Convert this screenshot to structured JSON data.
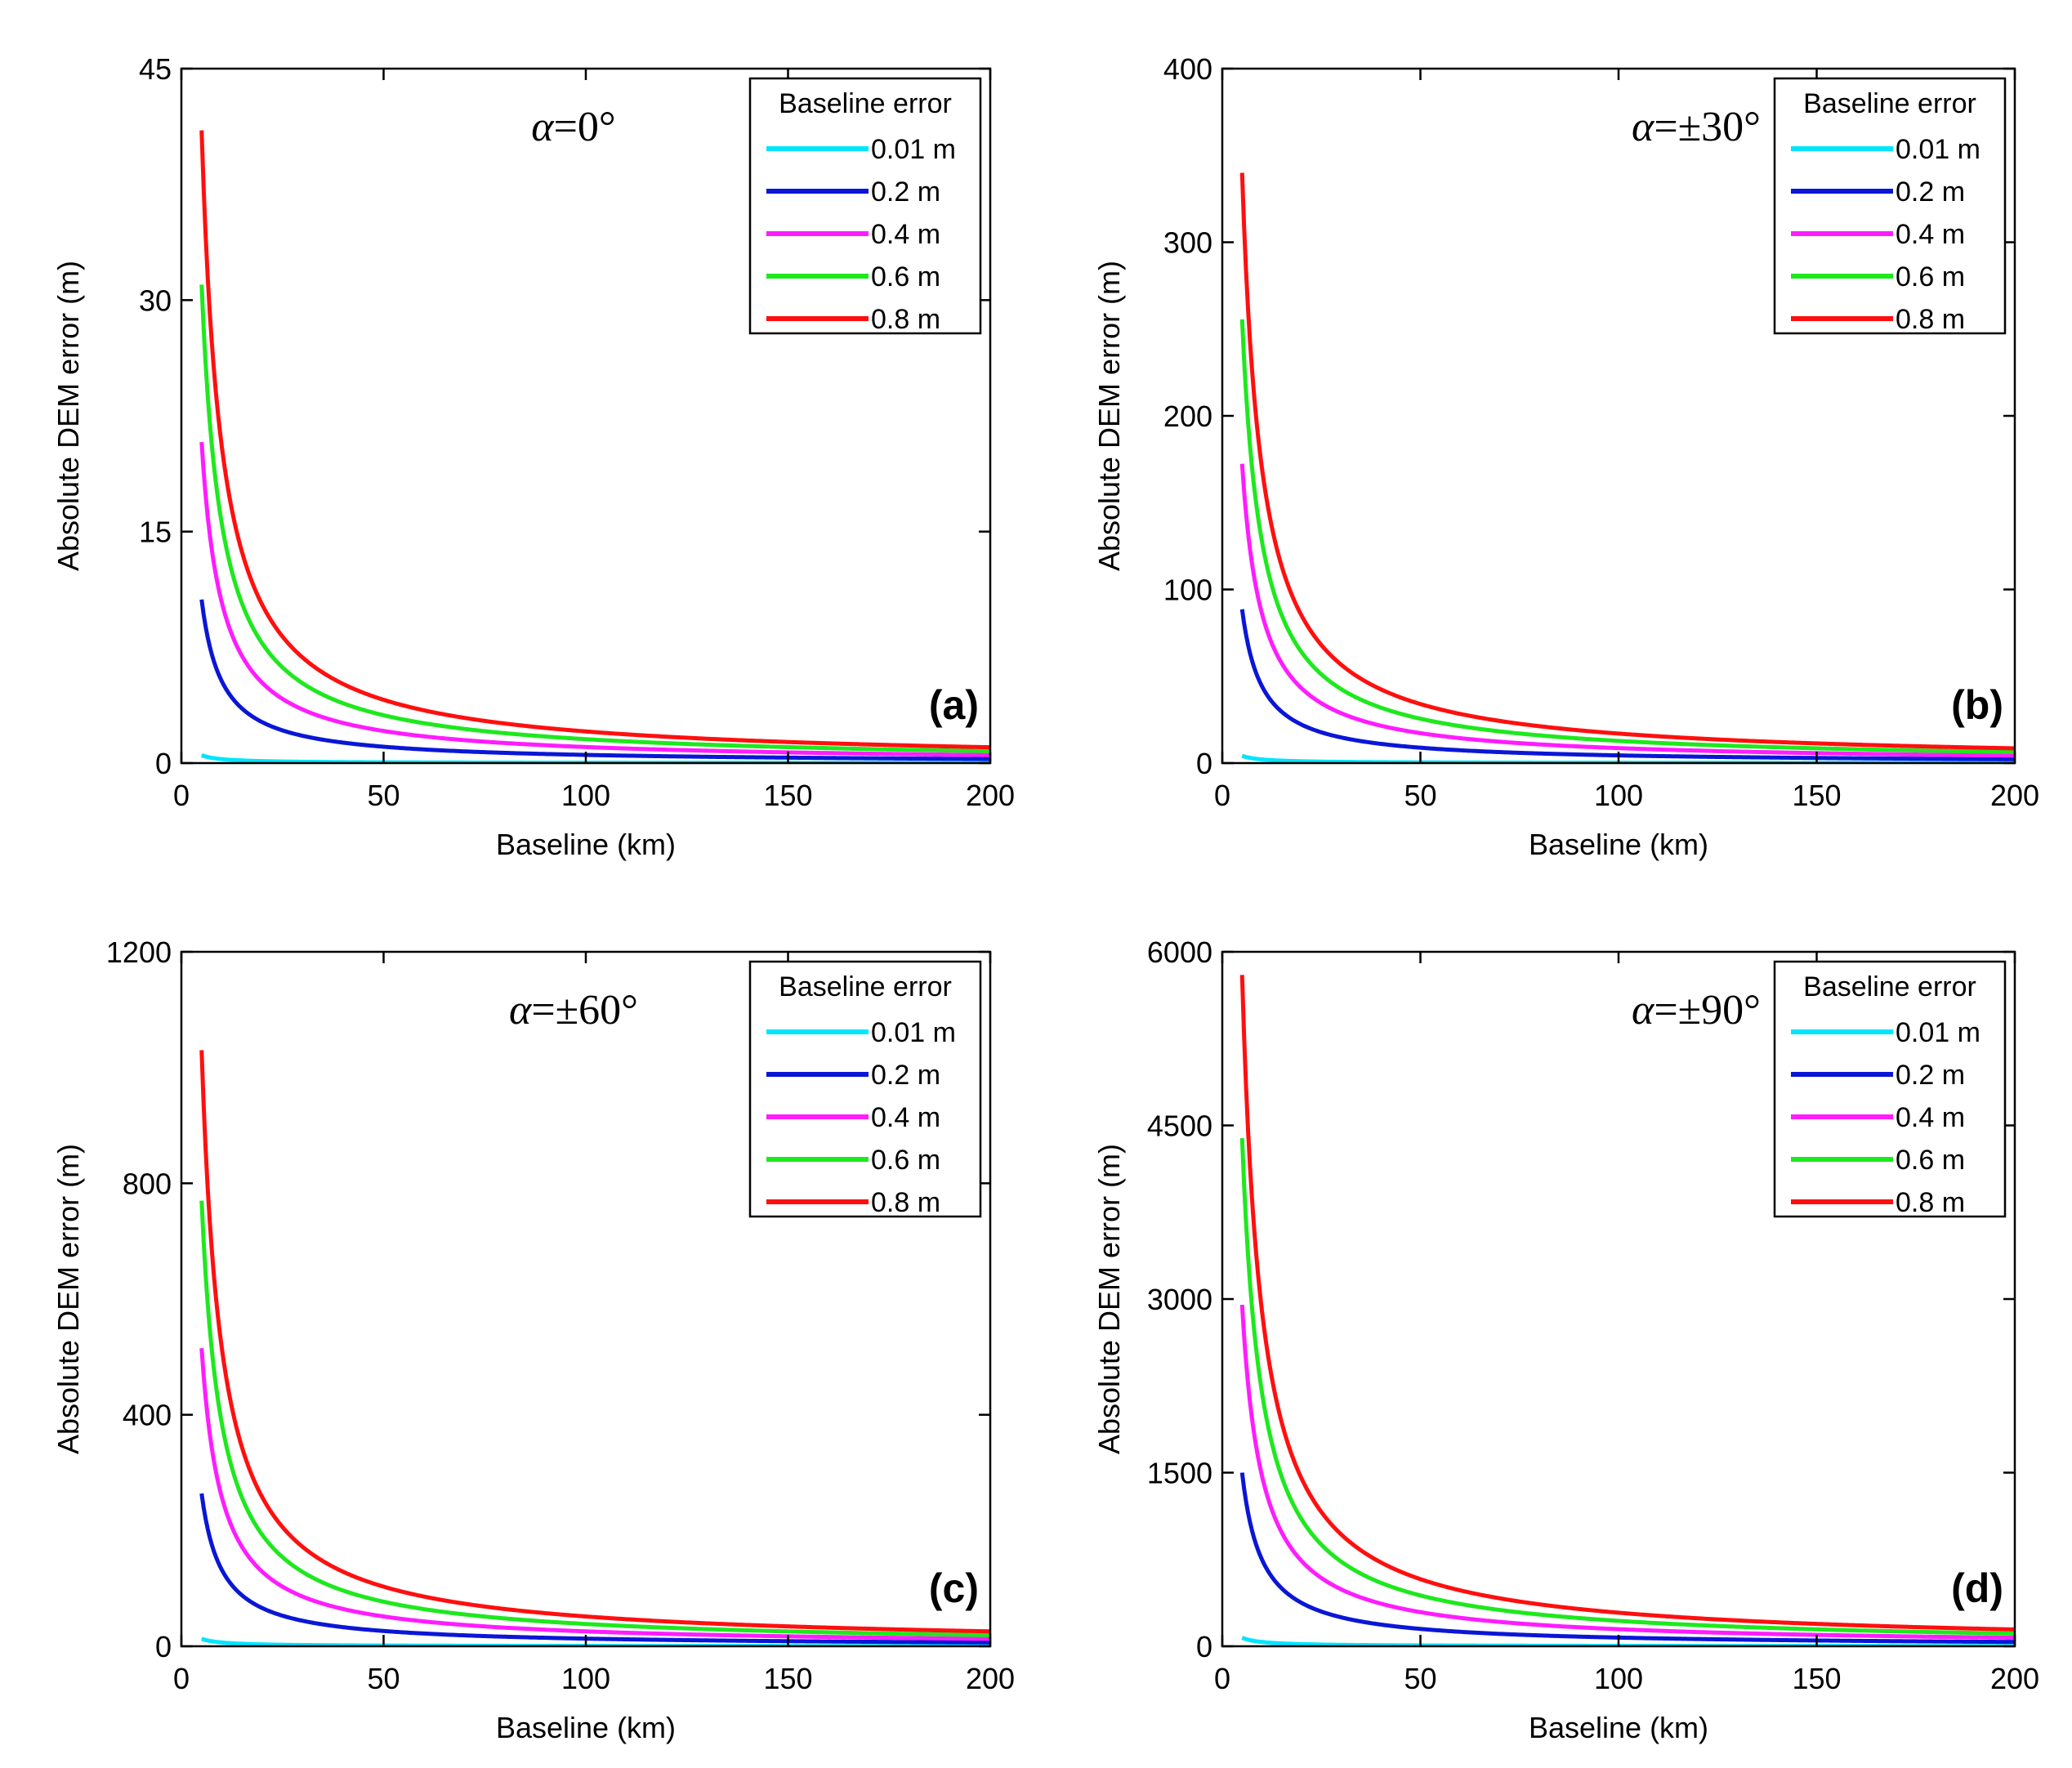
{
  "chart_data": [
    {
      "type": "line",
      "panel_label": "(a)",
      "alpha_symbol": "α",
      "alpha_value": "=0°",
      "xlabel": "Baseline (km)",
      "ylabel": "Absolute DEM error (m)",
      "xlim": [
        0,
        200
      ],
      "ylim": [
        0,
        45
      ],
      "xticks": [
        0,
        50,
        100,
        150,
        200
      ],
      "yticks": [
        0,
        15,
        30,
        45
      ],
      "legend_title": "Baseline error",
      "legend_position": "top-right",
      "curve_x_range": [
        5,
        200
      ],
      "series": [
        {
          "name": "0.01 m",
          "color": "#00e5ff",
          "k": 2.55
        },
        {
          "name": "0.2 m",
          "color": "#0a16d6",
          "k": 53
        },
        {
          "name": "0.4 m",
          "color": "#ff1cff",
          "k": 104
        },
        {
          "name": "0.6 m",
          "color": "#1ee81e",
          "k": 155
        },
        {
          "name": "0.8 m",
          "color": "#ff0f0f",
          "k": 205
        }
      ]
    },
    {
      "type": "line",
      "panel_label": "(b)",
      "alpha_symbol": "α",
      "alpha_value": "=±30°",
      "xlabel": "Baseline (km)",
      "ylabel": "Absolute DEM error (m)",
      "xlim": [
        0,
        200
      ],
      "ylim": [
        0,
        400
      ],
      "xticks": [
        0,
        50,
        100,
        150,
        200
      ],
      "yticks": [
        0,
        100,
        200,
        300,
        400
      ],
      "legend_title": "Baseline error",
      "legend_position": "top-right",
      "curve_x_range": [
        5,
        200
      ],
      "series": [
        {
          "name": "0.01 m",
          "color": "#00e5ff",
          "k": 21
        },
        {
          "name": "0.2 m",
          "color": "#0a16d6",
          "k": 443
        },
        {
          "name": "0.4 m",
          "color": "#ff1cff",
          "k": 862
        },
        {
          "name": "0.6 m",
          "color": "#1ee81e",
          "k": 1278
        },
        {
          "name": "0.8 m",
          "color": "#ff0f0f",
          "k": 1700
        }
      ]
    },
    {
      "type": "line",
      "panel_label": "(c)",
      "alpha_symbol": "α",
      "alpha_value": "=±60°",
      "xlabel": "Baseline (km)",
      "ylabel": "Absolute DEM error (m)",
      "xlim": [
        0,
        200
      ],
      "ylim": [
        0,
        1200
      ],
      "xticks": [
        0,
        50,
        100,
        150,
        200
      ],
      "yticks": [
        0,
        400,
        800,
        1200
      ],
      "legend_title": "Baseline error",
      "legend_position": "top-right",
      "curve_x_range": [
        5,
        200
      ],
      "series": [
        {
          "name": "0.01 m",
          "color": "#00e5ff",
          "k": 65
        },
        {
          "name": "0.2 m",
          "color": "#0a16d6",
          "k": 1320
        },
        {
          "name": "0.4 m",
          "color": "#ff1cff",
          "k": 2575
        },
        {
          "name": "0.6 m",
          "color": "#1ee81e",
          "k": 3850
        },
        {
          "name": "0.8 m",
          "color": "#ff0f0f",
          "k": 5150
        }
      ]
    },
    {
      "type": "line",
      "panel_label": "(d)",
      "alpha_symbol": "α",
      "alpha_value": "=±90°",
      "xlabel": "Baseline (km)",
      "ylabel": "Absolute DEM error (m)",
      "xlim": [
        0,
        200
      ],
      "ylim": [
        0,
        6000
      ],
      "xticks": [
        0,
        50,
        100,
        150,
        200
      ],
      "yticks": [
        0,
        1500,
        3000,
        4500,
        6000
      ],
      "legend_title": "Baseline error",
      "legend_position": "top-right",
      "curve_x_range": [
        5,
        200
      ],
      "series": [
        {
          "name": "0.01 m",
          "color": "#00e5ff",
          "k": 370
        },
        {
          "name": "0.2 m",
          "color": "#0a16d6",
          "k": 7500
        },
        {
          "name": "0.4 m",
          "color": "#ff1cff",
          "k": 14750
        },
        {
          "name": "0.6 m",
          "color": "#1ee81e",
          "k": 21950
        },
        {
          "name": "0.8 m",
          "color": "#ff0f0f",
          "k": 29000
        }
      ]
    }
  ]
}
